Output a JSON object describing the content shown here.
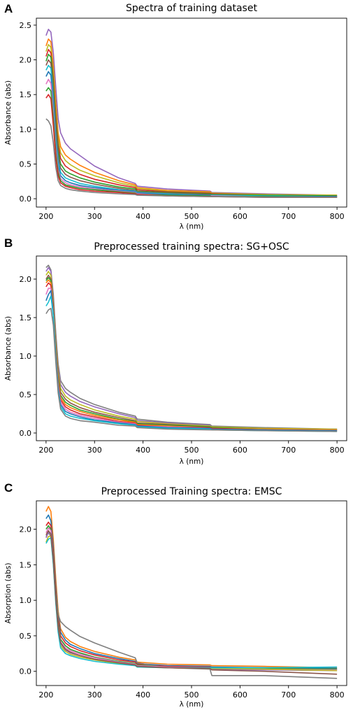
{
  "chart_data": [
    {
      "panel": "A",
      "type": "line",
      "title": "Spectra of training dataset",
      "xlabel": "λ (nm)",
      "ylabel": "Absorbance (abs)",
      "xlim": [
        180,
        820
      ],
      "ylim": [
        -0.12,
        2.6
      ],
      "xticks": [
        200,
        300,
        400,
        500,
        600,
        700,
        800
      ],
      "yticks": [
        0.0,
        0.5,
        1.0,
        1.5,
        2.0,
        2.5
      ],
      "ytick_labels": [
        "0.0",
        "0.5",
        "1.0",
        "1.5",
        "2.0",
        "2.5"
      ],
      "grid": false,
      "x": [
        200,
        205,
        210,
        215,
        220,
        225,
        230,
        240,
        250,
        270,
        300,
        350,
        384,
        388,
        450,
        538,
        542,
        650,
        800
      ],
      "series": [
        {
          "color": "#9467bd",
          "values": [
            2.35,
            2.44,
            2.4,
            2.1,
            1.6,
            1.15,
            0.95,
            0.8,
            0.72,
            0.62,
            0.47,
            0.3,
            0.22,
            0.18,
            0.14,
            0.11,
            0.09,
            0.07,
            0.05
          ]
        },
        {
          "color": "#ff7f0e",
          "values": [
            2.2,
            2.3,
            2.26,
            1.9,
            1.4,
            0.95,
            0.75,
            0.63,
            0.57,
            0.48,
            0.38,
            0.26,
            0.2,
            0.16,
            0.12,
            0.1,
            0.08,
            0.06,
            0.05
          ]
        },
        {
          "color": "#bcbd22",
          "values": [
            2.12,
            2.22,
            2.18,
            1.82,
            1.3,
            0.88,
            0.66,
            0.55,
            0.49,
            0.41,
            0.33,
            0.23,
            0.18,
            0.15,
            0.11,
            0.09,
            0.08,
            0.06,
            0.05
          ]
        },
        {
          "color": "#d62728",
          "values": [
            2.05,
            2.15,
            2.1,
            1.72,
            1.2,
            0.78,
            0.58,
            0.47,
            0.42,
            0.35,
            0.28,
            0.2,
            0.16,
            0.13,
            0.1,
            0.08,
            0.07,
            0.05,
            0.04
          ]
        },
        {
          "color": "#2ca02c",
          "values": [
            1.98,
            2.08,
            2.04,
            1.65,
            1.1,
            0.7,
            0.5,
            0.4,
            0.36,
            0.3,
            0.24,
            0.17,
            0.14,
            0.11,
            0.09,
            0.07,
            0.06,
            0.05,
            0.04
          ]
        },
        {
          "color": "#8c564b",
          "values": [
            1.92,
            2.0,
            1.95,
            1.55,
            1.0,
            0.62,
            0.44,
            0.35,
            0.31,
            0.26,
            0.21,
            0.15,
            0.12,
            0.1,
            0.08,
            0.06,
            0.05,
            0.04,
            0.03
          ]
        },
        {
          "color": "#17becf",
          "values": [
            1.85,
            1.92,
            1.88,
            1.45,
            0.9,
            0.55,
            0.38,
            0.3,
            0.27,
            0.22,
            0.18,
            0.13,
            0.11,
            0.09,
            0.07,
            0.05,
            0.05,
            0.04,
            0.03
          ]
        },
        {
          "color": "#1f77b4",
          "values": [
            1.76,
            1.83,
            1.78,
            1.35,
            0.82,
            0.48,
            0.33,
            0.26,
            0.23,
            0.19,
            0.16,
            0.12,
            0.1,
            0.08,
            0.06,
            0.05,
            0.04,
            0.03,
            0.03
          ]
        },
        {
          "color": "#e377c2",
          "values": [
            1.65,
            1.72,
            1.66,
            1.25,
            0.74,
            0.43,
            0.29,
            0.23,
            0.2,
            0.17,
            0.14,
            0.11,
            0.09,
            0.07,
            0.05,
            0.04,
            0.04,
            0.03,
            0.02
          ]
        },
        {
          "color": "#2ca02c",
          "values": [
            1.55,
            1.6,
            1.55,
            1.15,
            0.66,
            0.38,
            0.26,
            0.2,
            0.18,
            0.15,
            0.13,
            0.1,
            0.08,
            0.06,
            0.05,
            0.04,
            0.03,
            0.03,
            0.02
          ]
        },
        {
          "color": "#d62728",
          "values": [
            1.45,
            1.5,
            1.44,
            1.05,
            0.58,
            0.33,
            0.23,
            0.18,
            0.16,
            0.13,
            0.11,
            0.09,
            0.07,
            0.06,
            0.04,
            0.03,
            0.03,
            0.02,
            0.02
          ]
        },
        {
          "color": "#7f7f7f",
          "values": [
            1.15,
            1.12,
            1.05,
            0.8,
            0.45,
            0.26,
            0.19,
            0.15,
            0.13,
            0.11,
            0.09,
            0.07,
            0.06,
            0.05,
            0.04,
            0.03,
            0.03,
            0.02,
            0.02
          ]
        }
      ]
    },
    {
      "panel": "B",
      "type": "line",
      "title": "Preprocessed training spectra: SG+OSC",
      "xlabel": "λ (nm)",
      "ylabel": "Absorbance (abs)",
      "xlim": [
        180,
        820
      ],
      "ylim": [
        -0.1,
        2.3
      ],
      "xticks": [
        200,
        300,
        400,
        500,
        600,
        700,
        800
      ],
      "yticks": [
        0.0,
        0.5,
        1.0,
        1.5,
        2.0
      ],
      "ytick_labels": [
        "0.0",
        "0.5",
        "1.0",
        "1.5",
        "2.0"
      ],
      "grid": false,
      "x": [
        200,
        205,
        210,
        215,
        220,
        225,
        230,
        240,
        250,
        270,
        300,
        350,
        384,
        388,
        450,
        538,
        542,
        650,
        800
      ],
      "series": [
        {
          "color": "#7f7f7f",
          "values": [
            2.15,
            2.18,
            2.12,
            1.8,
            1.3,
            0.9,
            0.68,
            0.58,
            0.53,
            0.45,
            0.37,
            0.27,
            0.22,
            0.18,
            0.14,
            0.11,
            0.09,
            0.07,
            0.05
          ]
        },
        {
          "color": "#9467bd",
          "values": [
            2.1,
            2.15,
            2.1,
            1.75,
            1.25,
            0.85,
            0.63,
            0.53,
            0.48,
            0.41,
            0.34,
            0.25,
            0.2,
            0.16,
            0.13,
            0.1,
            0.08,
            0.06,
            0.05
          ]
        },
        {
          "color": "#bcbd22",
          "values": [
            2.05,
            2.1,
            2.05,
            1.7,
            1.2,
            0.8,
            0.58,
            0.48,
            0.43,
            0.37,
            0.3,
            0.22,
            0.18,
            0.15,
            0.12,
            0.09,
            0.08,
            0.06,
            0.05
          ]
        },
        {
          "color": "#8c564b",
          "values": [
            2.0,
            2.05,
            2.0,
            1.66,
            1.15,
            0.75,
            0.53,
            0.44,
            0.39,
            0.33,
            0.27,
            0.2,
            0.16,
            0.13,
            0.11,
            0.08,
            0.07,
            0.05,
            0.04
          ]
        },
        {
          "color": "#2ca02c",
          "values": [
            1.98,
            2.02,
            1.98,
            1.63,
            1.11,
            0.71,
            0.49,
            0.4,
            0.36,
            0.3,
            0.25,
            0.18,
            0.15,
            0.12,
            0.1,
            0.08,
            0.07,
            0.05,
            0.04
          ]
        },
        {
          "color": "#ff7f0e",
          "values": [
            1.95,
            1.99,
            1.95,
            1.6,
            1.08,
            0.68,
            0.46,
            0.37,
            0.33,
            0.28,
            0.23,
            0.17,
            0.14,
            0.11,
            0.09,
            0.07,
            0.06,
            0.05,
            0.04
          ]
        },
        {
          "color": "#d62728",
          "values": [
            1.9,
            1.95,
            1.92,
            1.58,
            1.05,
            0.65,
            0.43,
            0.34,
            0.3,
            0.25,
            0.21,
            0.15,
            0.13,
            0.1,
            0.08,
            0.07,
            0.06,
            0.04,
            0.03
          ]
        },
        {
          "color": "#e377c2",
          "values": [
            1.8,
            1.88,
            1.88,
            1.56,
            1.02,
            0.62,
            0.4,
            0.31,
            0.27,
            0.23,
            0.19,
            0.14,
            0.12,
            0.09,
            0.08,
            0.06,
            0.05,
            0.04,
            0.03
          ]
        },
        {
          "color": "#1f77b4",
          "values": [
            1.72,
            1.8,
            1.85,
            1.54,
            1.0,
            0.59,
            0.37,
            0.28,
            0.25,
            0.21,
            0.17,
            0.13,
            0.11,
            0.09,
            0.07,
            0.06,
            0.05,
            0.04,
            0.03
          ]
        },
        {
          "color": "#17becf",
          "values": [
            1.65,
            1.7,
            1.78,
            1.52,
            0.98,
            0.56,
            0.34,
            0.25,
            0.22,
            0.19,
            0.16,
            0.12,
            0.1,
            0.08,
            0.06,
            0.05,
            0.04,
            0.03,
            0.02
          ]
        },
        {
          "color": "#7f7f7f",
          "values": [
            1.55,
            1.6,
            1.62,
            1.4,
            0.92,
            0.52,
            0.31,
            0.22,
            0.19,
            0.16,
            0.14,
            0.1,
            0.09,
            0.07,
            0.05,
            0.04,
            0.04,
            0.03,
            0.02
          ]
        }
      ]
    },
    {
      "panel": "C",
      "type": "line",
      "title": "Preprocessed Training spectra: EMSC",
      "xlabel": "λ (nm)",
      "ylabel": "Absorption (abs)",
      "xlim": [
        180,
        820
      ],
      "ylim": [
        -0.2,
        2.4
      ],
      "xticks": [
        200,
        300,
        400,
        500,
        600,
        700,
        800
      ],
      "yticks": [
        0.0,
        0.5,
        1.0,
        1.5,
        2.0
      ],
      "ytick_labels": [
        "0.0",
        "0.5",
        "1.0",
        "1.5",
        "2.0"
      ],
      "grid": false,
      "x": [
        200,
        205,
        210,
        215,
        220,
        225,
        230,
        240,
        250,
        270,
        300,
        350,
        384,
        388,
        450,
        538,
        542,
        650,
        800
      ],
      "series": [
        {
          "color": "#ff7f0e",
          "values": [
            2.25,
            2.32,
            2.25,
            1.85,
            1.3,
            0.85,
            0.6,
            0.48,
            0.42,
            0.35,
            0.28,
            0.2,
            0.16,
            0.13,
            0.1,
            0.09,
            0.08,
            0.07,
            0.05
          ]
        },
        {
          "color": "#1f77b4",
          "values": [
            2.15,
            2.2,
            2.12,
            1.75,
            1.2,
            0.78,
            0.55,
            0.44,
            0.38,
            0.32,
            0.25,
            0.18,
            0.14,
            0.11,
            0.08,
            0.07,
            0.06,
            0.05,
            0.04
          ]
        },
        {
          "color": "#d62728",
          "values": [
            2.05,
            2.1,
            2.05,
            1.68,
            1.15,
            0.74,
            0.5,
            0.4,
            0.35,
            0.29,
            0.23,
            0.16,
            0.13,
            0.1,
            0.07,
            0.06,
            0.05,
            0.04,
            0.03
          ]
        },
        {
          "color": "#7f7f7f",
          "values": [
            1.9,
            1.95,
            1.9,
            1.6,
            1.1,
            0.8,
            0.7,
            0.63,
            0.58,
            0.49,
            0.4,
            0.27,
            0.19,
            0.12,
            0.05,
            0.03,
            -0.06,
            -0.06,
            -0.1
          ]
        },
        {
          "color": "#2ca02c",
          "values": [
            2.0,
            2.05,
            2.0,
            1.62,
            1.08,
            0.68,
            0.45,
            0.36,
            0.31,
            0.26,
            0.2,
            0.14,
            0.11,
            0.09,
            0.06,
            0.05,
            0.05,
            0.04,
            0.03
          ]
        },
        {
          "color": "#e377c2",
          "values": [
            1.95,
            2.02,
            1.98,
            1.58,
            1.04,
            0.64,
            0.42,
            0.33,
            0.29,
            0.24,
            0.19,
            0.13,
            0.1,
            0.08,
            0.06,
            0.05,
            0.04,
            0.03,
            0.02
          ]
        },
        {
          "color": "#9467bd",
          "values": [
            1.88,
            1.96,
            1.94,
            1.55,
            1.01,
            0.61,
            0.39,
            0.3,
            0.26,
            0.22,
            0.17,
            0.12,
            0.09,
            0.07,
            0.05,
            0.04,
            0.03,
            0.02,
            0.01
          ]
        },
        {
          "color": "#bcbd22",
          "values": [
            1.82,
            1.9,
            1.9,
            1.52,
            0.98,
            0.58,
            0.36,
            0.28,
            0.24,
            0.2,
            0.16,
            0.11,
            0.08,
            0.06,
            0.05,
            0.04,
            0.04,
            0.03,
            0.01
          ]
        },
        {
          "color": "#17becf",
          "values": [
            1.8,
            1.86,
            1.88,
            1.5,
            0.96,
            0.55,
            0.33,
            0.25,
            0.22,
            0.18,
            0.14,
            0.1,
            0.08,
            0.06,
            0.05,
            0.05,
            0.05,
            0.05,
            0.06
          ]
        },
        {
          "color": "#8c564b",
          "values": [
            1.92,
            1.98,
            1.93,
            1.56,
            1.02,
            0.62,
            0.4,
            0.31,
            0.27,
            0.22,
            0.17,
            0.12,
            0.09,
            0.07,
            0.05,
            0.04,
            0.02,
            0.0,
            -0.04
          ]
        }
      ]
    }
  ]
}
